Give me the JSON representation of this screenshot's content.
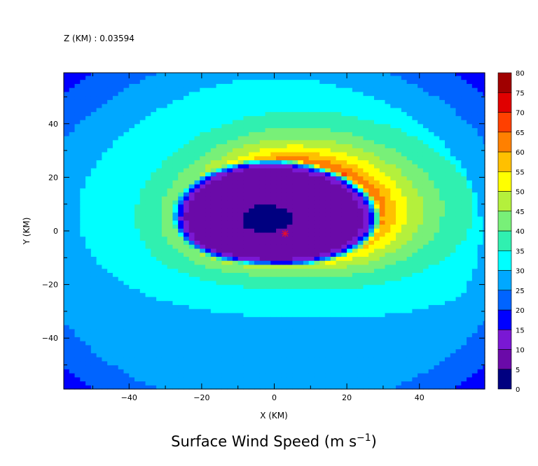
{
  "header": {
    "z_label": "Z (KM) : 0.03594"
  },
  "chart_data": {
    "type": "heatmap",
    "title": "Surface Wind Speed (m s",
    "title_superscript": "−1",
    "title_suffix": ")",
    "xlabel": "X (KM)",
    "ylabel": "Y (KM)",
    "xlim": [
      -58,
      58
    ],
    "ylim": [
      -59,
      59
    ],
    "x_ticks": [
      -40,
      -20,
      0,
      20,
      40
    ],
    "y_ticks": [
      -40,
      -20,
      0,
      20,
      40
    ],
    "x_tick_labels": [
      "−40",
      "−20",
      "0",
      "20",
      "40"
    ],
    "y_tick_labels": [
      "−40",
      "−20",
      "0",
      "20",
      "40"
    ],
    "center_marker": {
      "x": 3,
      "y": -1,
      "color": "#e8102a"
    },
    "colorbar": {
      "levels": [
        0,
        5,
        10,
        15,
        20,
        25,
        30,
        35,
        40,
        45,
        50,
        55,
        60,
        65,
        70,
        75,
        80
      ],
      "level_labels": [
        "0",
        "5",
        "10",
        "15",
        "20",
        "25",
        "30",
        "35",
        "40",
        "45",
        "50",
        "55",
        "60",
        "65",
        "70",
        "75",
        "80"
      ],
      "colors": [
        "#000080",
        "#6a0aa8",
        "#7a18d4",
        "#0000ff",
        "#0064ff",
        "#00a8ff",
        "#00ffff",
        "#30f0b0",
        "#78f078",
        "#b4f03c",
        "#ffff00",
        "#ffc000",
        "#ff8000",
        "#ff4000",
        "#e00000",
        "#a00000"
      ]
    },
    "field": {
      "description_levels": "filled contour of surface wind speed",
      "eye_center": [
        -3,
        4
      ],
      "rmw_peak": 58,
      "ambient": 28
    }
  }
}
